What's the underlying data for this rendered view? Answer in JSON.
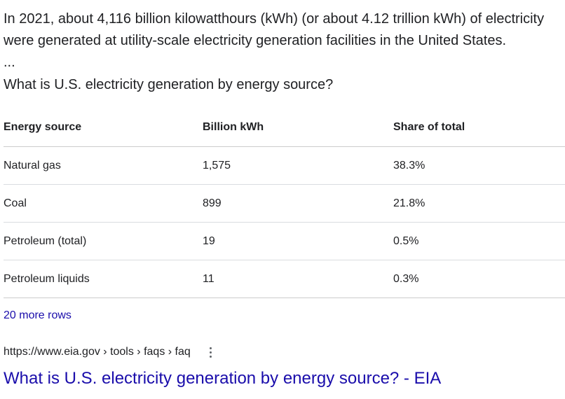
{
  "snippet": {
    "intro": "In 2021, about 4,116 billion kilowatthours (kWh) (or about 4.12 trillion kWh) of electricity were generated at utility-scale electricity generation facilities in the United States.",
    "ellipsis": "...",
    "question": "What is U.S. electricity generation by energy source?"
  },
  "table": {
    "headers": [
      "Energy source",
      "Billion kWh",
      "Share of total"
    ],
    "rows": [
      [
        "Natural gas",
        "1,575",
        "38.3%"
      ],
      [
        "Coal",
        "899",
        "21.8%"
      ],
      [
        "Petroleum (total)",
        "19",
        "0.5%"
      ],
      [
        "Petroleum liquids",
        "11",
        "0.3%"
      ]
    ]
  },
  "more_rows": "20 more rows",
  "result": {
    "cite": "https://www.eia.gov › tools › faqs › faq",
    "title": "What is U.S. electricity generation by energy source? - EIA",
    "menu_icon": "more-vert-icon",
    "link_color": "#1a0dab"
  }
}
